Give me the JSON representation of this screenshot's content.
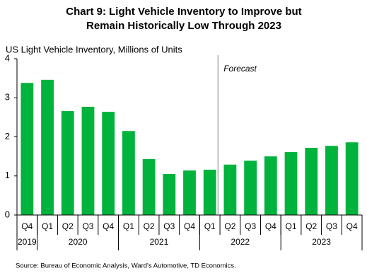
{
  "chart_data": {
    "type": "bar",
    "title": [
      "Chart 9: Light Vehicle Inventory to Improve but",
      "Remain Historically Low Through 2023"
    ],
    "y_label": "US Light Vehicle Inventory, Millions of Units",
    "source": "Source:  Bureau  of  Economic  Analysis, Ward's Automotive,  TD  Economics.",
    "categories": [
      "Q4",
      "Q1",
      "Q2",
      "Q3",
      "Q4",
      "Q1",
      "Q2",
      "Q3",
      "Q4",
      "Q1",
      "Q2",
      "Q3",
      "Q4",
      "Q1",
      "Q2",
      "Q3",
      "Q4"
    ],
    "category_groups": [
      {
        "label": "2019",
        "span": 1
      },
      {
        "label": "2020",
        "span": 4
      },
      {
        "label": "2021",
        "span": 4
      },
      {
        "label": "2022",
        "span": 4
      },
      {
        "label": "2023",
        "span": 4
      }
    ],
    "values": [
      3.38,
      3.46,
      2.66,
      2.77,
      2.64,
      2.15,
      1.43,
      1.05,
      1.14,
      1.16,
      1.29,
      1.39,
      1.5,
      1.61,
      1.72,
      1.77,
      1.86
    ],
    "color": "#00b33c",
    "ylim": [
      0,
      4
    ],
    "yticks": [
      0,
      1,
      2,
      3,
      4
    ],
    "grid": false,
    "annotations": [
      {
        "text": "Forecast",
        "category_index": 10
      }
    ]
  }
}
